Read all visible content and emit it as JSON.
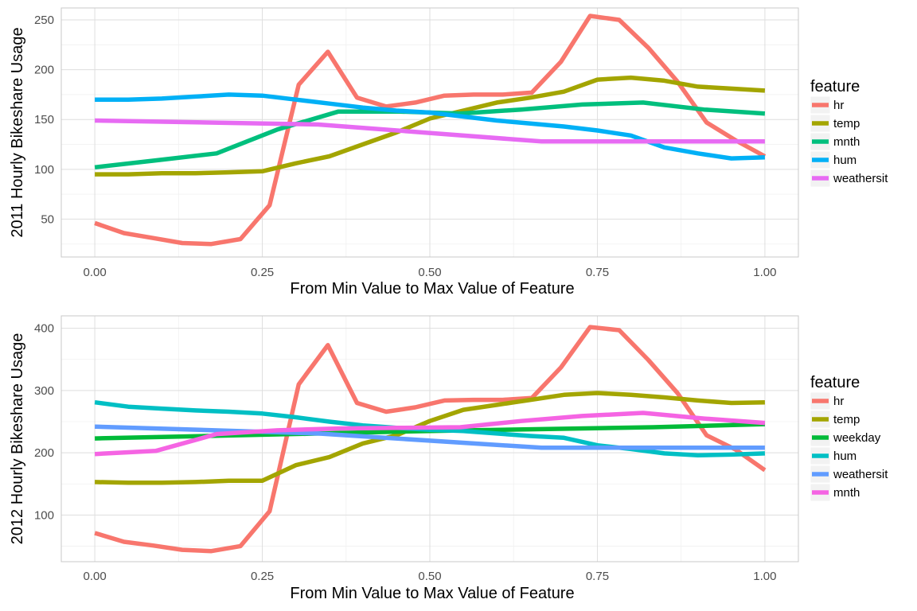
{
  "chart_data": [
    {
      "type": "line",
      "xlabel": "From Min Value to Max Value of Feature",
      "ylabel": "2011 Hourly Bikeshare Usage",
      "xlim": [
        -0.05,
        1.05
      ],
      "ylim": [
        12,
        262
      ],
      "x_ticks": [
        0,
        0.25,
        0.5,
        0.75,
        1
      ],
      "x_tick_labels": [
        "0.00",
        "0.25",
        "0.50",
        "0.75",
        "1.00"
      ],
      "y_ticks": [
        50,
        100,
        150,
        200,
        250
      ],
      "y_tick_labels": [
        "50",
        "100",
        "150",
        "200",
        "250"
      ],
      "grid": true,
      "legend_title": "feature",
      "legend_position": "right",
      "series": [
        {
          "name": "hr",
          "color": "#F8766D",
          "x": [
            0,
            0.0435,
            0.087,
            0.1304,
            0.1739,
            0.2174,
            0.2609,
            0.3043,
            0.3478,
            0.3913,
            0.4348,
            0.4783,
            0.5217,
            0.5652,
            0.6087,
            0.6522,
            0.6957,
            0.7391,
            0.7826,
            0.8261,
            0.8696,
            0.913,
            0.9565,
            1
          ],
          "y": [
            46,
            36,
            31,
            26,
            25,
            30,
            64,
            185,
            218,
            172,
            163,
            167,
            174,
            175,
            175,
            177,
            208,
            254,
            250,
            222,
            188,
            147,
            129,
            113
          ]
        },
        {
          "name": "temp",
          "color": "#A3A500",
          "x": [
            0,
            0.05,
            0.1,
            0.15,
            0.2,
            0.25,
            0.3,
            0.35,
            0.4,
            0.45,
            0.5,
            0.55,
            0.6,
            0.65,
            0.7,
            0.75,
            0.8,
            0.85,
            0.9,
            0.95,
            1
          ],
          "y": [
            95,
            95,
            96,
            96,
            97,
            98,
            106,
            113,
            125,
            137,
            151,
            159,
            167,
            172,
            178,
            190,
            192,
            189,
            183,
            181,
            179
          ]
        },
        {
          "name": "mnth",
          "color": "#00BF7D",
          "x": [
            0,
            0.0909,
            0.1818,
            0.2727,
            0.3636,
            0.4545,
            0.5455,
            0.6364,
            0.7273,
            0.8182,
            0.9091,
            1
          ],
          "y": [
            102,
            109,
            116,
            140,
            158,
            158,
            156,
            160,
            165,
            167,
            160,
            156
          ]
        },
        {
          "name": "hum",
          "color": "#00B0F6",
          "x": [
            0,
            0.05,
            0.1,
            0.15,
            0.2,
            0.25,
            0.3,
            0.35,
            0.4,
            0.45,
            0.5,
            0.55,
            0.6,
            0.65,
            0.7,
            0.75,
            0.8,
            0.85,
            0.9,
            0.95,
            1
          ],
          "y": [
            170,
            170,
            171,
            173,
            175,
            174,
            170,
            166,
            162,
            159,
            157,
            153,
            149,
            146,
            143,
            139,
            134,
            122,
            116,
            111,
            112
          ]
        },
        {
          "name": "weathersit",
          "color": "#E76BF3",
          "x": [
            0,
            0.3333,
            0.6667,
            1
          ],
          "y": [
            149,
            145,
            128,
            128
          ]
        }
      ]
    },
    {
      "type": "line",
      "xlabel": "From Min Value to Max Value of Feature",
      "ylabel": "2012 Hourly Bikeshare Usage",
      "xlim": [
        -0.05,
        1.05
      ],
      "ylim": [
        25,
        420
      ],
      "x_ticks": [
        0,
        0.25,
        0.5,
        0.75,
        1
      ],
      "x_tick_labels": [
        "0.00",
        "0.25",
        "0.50",
        "0.75",
        "1.00"
      ],
      "y_ticks": [
        100,
        200,
        300,
        400
      ],
      "y_tick_labels": [
        "100",
        "200",
        "300",
        "400"
      ],
      "grid": true,
      "legend_title": "feature",
      "legend_position": "right",
      "series": [
        {
          "name": "hr",
          "color": "#F8766D",
          "x": [
            0,
            0.0435,
            0.087,
            0.1304,
            0.1739,
            0.2174,
            0.2609,
            0.3043,
            0.3478,
            0.3913,
            0.4348,
            0.4783,
            0.5217,
            0.5652,
            0.6087,
            0.6522,
            0.6957,
            0.7391,
            0.7826,
            0.8261,
            0.8696,
            0.913,
            0.9565,
            1
          ],
          "y": [
            71,
            57,
            51,
            44,
            42,
            50,
            106,
            310,
            373,
            280,
            266,
            273,
            284,
            285,
            285,
            288,
            337,
            402,
            397,
            349,
            296,
            228,
            205,
            172
          ]
        },
        {
          "name": "temp",
          "color": "#A3A500",
          "x": [
            0,
            0.05,
            0.1,
            0.15,
            0.2,
            0.25,
            0.3,
            0.35,
            0.4,
            0.45,
            0.5,
            0.55,
            0.6,
            0.65,
            0.7,
            0.75,
            0.8,
            0.85,
            0.9,
            0.95,
            1
          ],
          "y": [
            153,
            152,
            152,
            153,
            155,
            155,
            180,
            193,
            215,
            228,
            251,
            269,
            277,
            285,
            293,
            296,
            293,
            289,
            284,
            280,
            281
          ]
        },
        {
          "name": "weekday",
          "color": "#00BA38",
          "x": [
            0,
            0.1667,
            0.3333,
            0.5,
            0.6667,
            0.8333,
            1
          ],
          "y": [
            223,
            227,
            231,
            235,
            238,
            241,
            246
          ]
        },
        {
          "name": "hum",
          "color": "#00BFC4",
          "x": [
            0,
            0.05,
            0.1,
            0.15,
            0.2,
            0.25,
            0.3,
            0.35,
            0.4,
            0.45,
            0.5,
            0.55,
            0.6,
            0.65,
            0.7,
            0.75,
            0.8,
            0.85,
            0.9,
            0.95,
            1
          ],
          "y": [
            281,
            274,
            271,
            268,
            266,
            263,
            257,
            250,
            244,
            240,
            237,
            235,
            231,
            227,
            224,
            212,
            206,
            199,
            196,
            197,
            199
          ]
        },
        {
          "name": "weathersit",
          "color": "#619CFF",
          "x": [
            0,
            0.3333,
            0.6667,
            1
          ],
          "y": [
            242,
            231,
            208,
            208
          ]
        },
        {
          "name": "mnth",
          "color": "#F564E3",
          "x": [
            0,
            0.0909,
            0.1818,
            0.2727,
            0.3636,
            0.4545,
            0.5455,
            0.6364,
            0.7273,
            0.8182,
            0.9091,
            1
          ],
          "y": [
            198,
            203,
            230,
            236,
            239,
            240,
            241,
            251,
            259,
            264,
            255,
            248
          ]
        }
      ]
    }
  ]
}
